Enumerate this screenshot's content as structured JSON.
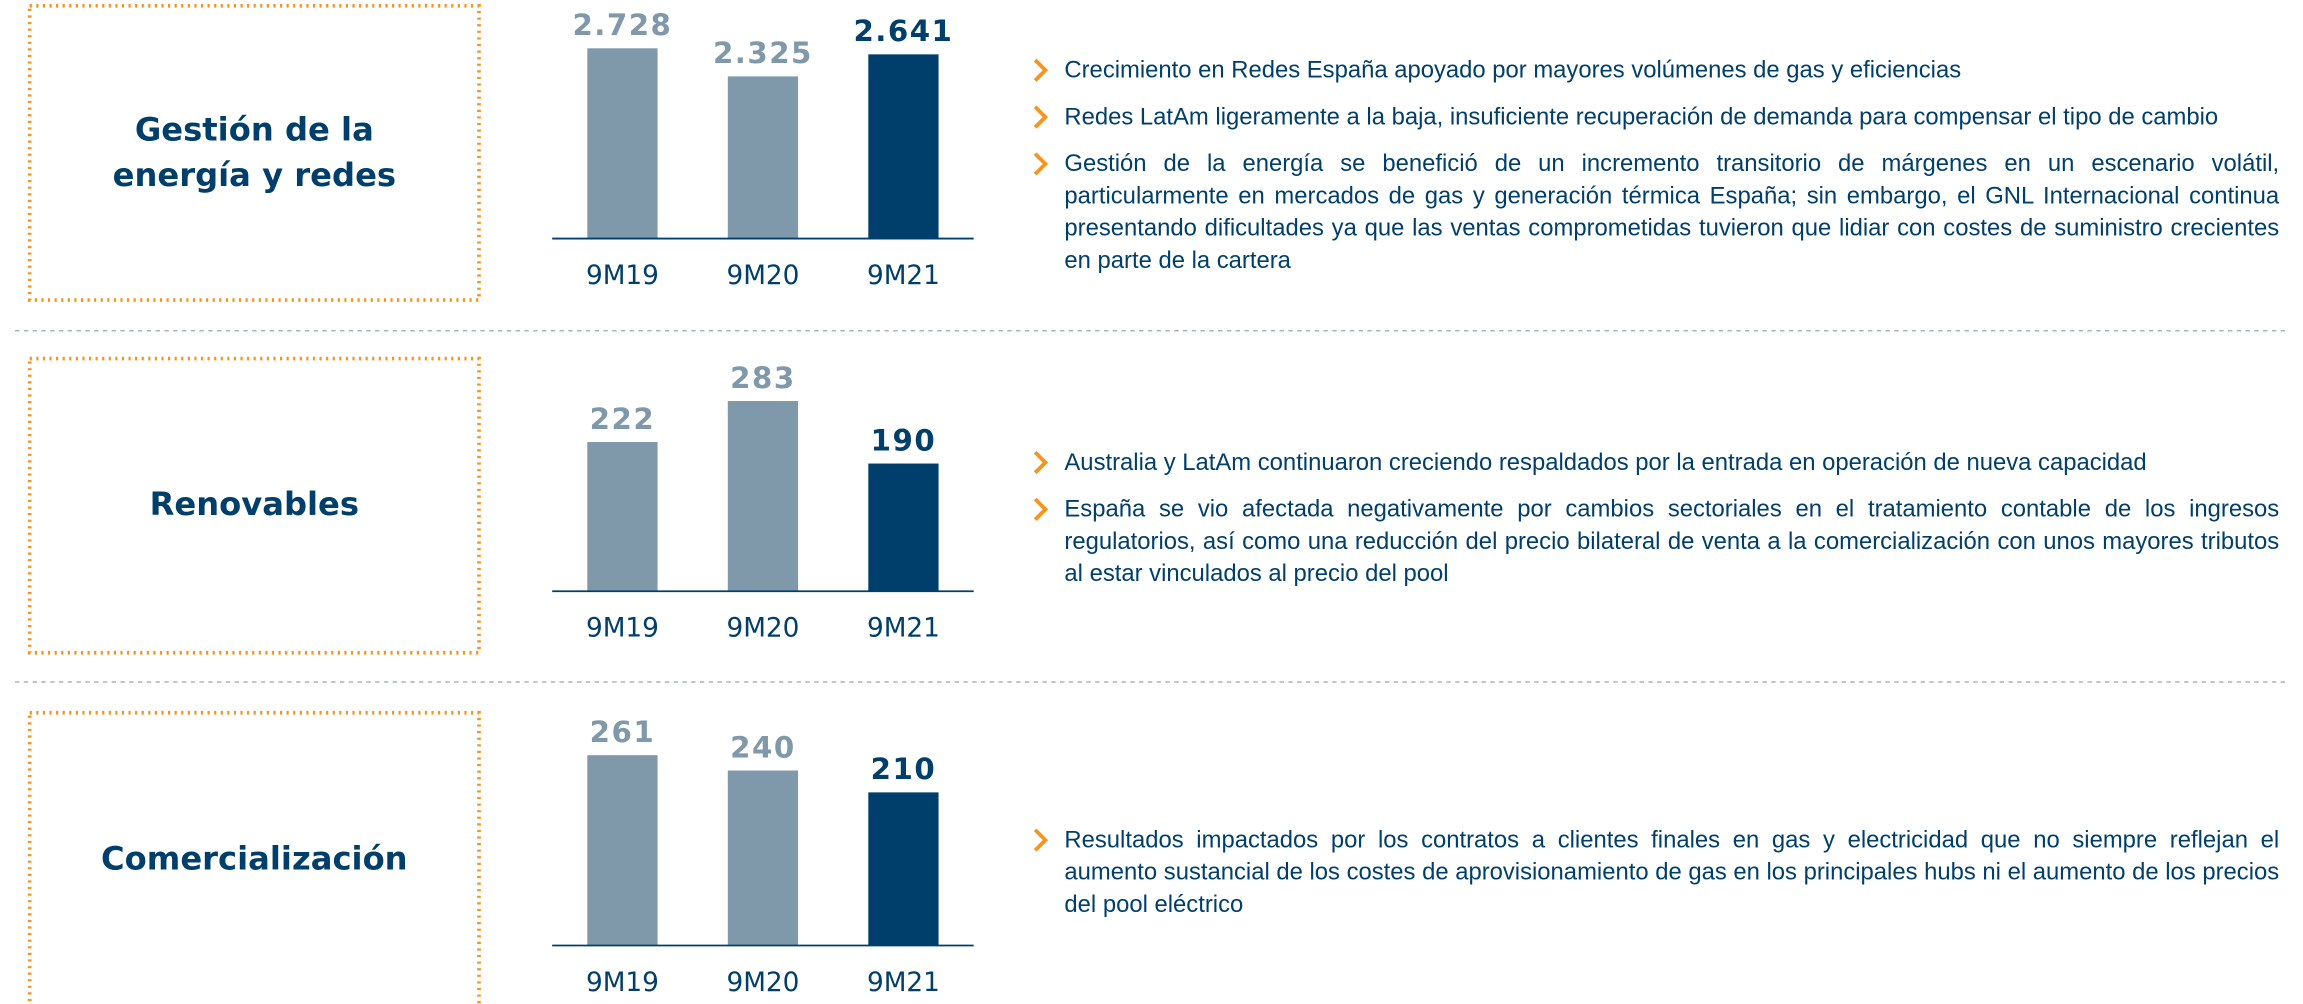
{
  "chart_data": [
    {
      "type": "bar",
      "title": "Gestión de la energía y redes",
      "categories": [
        "9M19",
        "9M20",
        "9M21"
      ],
      "values": [
        2728,
        2325,
        2641
      ],
      "value_labels": [
        "2.728",
        "2.325",
        "2.641"
      ],
      "colors": [
        "#7f99aa",
        "#7f99aa",
        "#003f6b"
      ],
      "annotations": [
        "Crecimiento en Redes España apoyado por mayores volúmenes de gas y eficiencias",
        "Redes LatAm ligeramente a la baja, insuficiente recuperación de demanda para compensar el tipo de cambio",
        "Gestión de la energía se benefició de un incremento transitorio de márgenes en un escenario volátil, particularmente en mercados de gas y generación térmica España; sin embargo, el GNL Internacional continua presentando dificultades ya que las ventas comprometidas tuvieron que lidiar con costes de suministro crecientes en parte de la cartera"
      ]
    },
    {
      "type": "bar",
      "title": "Renovables",
      "categories": [
        "9M19",
        "9M20",
        "9M21"
      ],
      "values": [
        222,
        283,
        190
      ],
      "colors": [
        "#7f99aa",
        "#7f99aa",
        "#003f6b"
      ],
      "annotations": [
        "Australia y LatAm continuaron creciendo respaldados por la entrada en operación de nueva capacidad",
        "España se vio afectada negativamente por cambios sectoriales en el tratamiento contable de los ingresos regulatorios, así como una reducción del precio bilateral de venta a la comercialización con unos mayores tributos al estar vinculados al precio del pool"
      ]
    },
    {
      "type": "bar",
      "title": "Comercialización",
      "categories": [
        "9M19",
        "9M20",
        "9M21"
      ],
      "values": [
        261,
        240,
        210
      ],
      "colors": [
        "#7f99aa",
        "#7f99aa",
        "#003f6b"
      ],
      "annotations": [
        "Resultados impactados por los contratos a clientes finales en gas y electricidad que no siempre reflejan el aumento sustancial de los costes de aprovisionamiento de gas en los principales hubs ni el aumento de los precios del pool eléctrico"
      ]
    }
  ]
}
